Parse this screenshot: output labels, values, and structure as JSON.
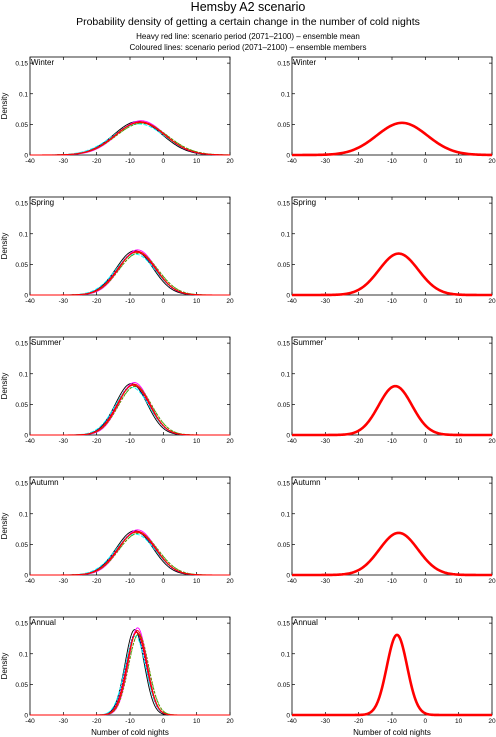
{
  "header": {
    "title": "Hemsby A2 scenario",
    "subtitle": "Probability density of getting a certain change in the number of cold nights",
    "note_mean": "Heavy red line: scenario period (2071–2100) – ensemble mean",
    "note_members": "Coloured lines: scenario period (2071–2100) – ensemble members"
  },
  "colors": {
    "ensemble_mean": "#ff0000",
    "ensemble_members": [
      "#000000",
      "#00c000",
      "#0000ff",
      "#ff00ff",
      "#00ffff",
      "#ff0000",
      "#808000"
    ]
  },
  "chart_data": [
    {
      "type": "line",
      "panel": "Winter",
      "column": "members",
      "season_label": "Winter",
      "ylabel": "Density",
      "xlabel": "",
      "xlim": [
        -40,
        20
      ],
      "ylim": [
        0,
        0.16
      ],
      "xticks": [
        -40,
        -30,
        -20,
        -10,
        0,
        10,
        20
      ],
      "yticks": [
        0,
        0.05,
        0.1,
        0.15
      ],
      "series": [
        {
          "distribution": "normal",
          "mean": -7,
          "sd": 7.5
        }
      ]
    },
    {
      "type": "line",
      "panel": "Winter",
      "column": "mean",
      "season_label": "Winter",
      "ylabel": "",
      "xlabel": "",
      "xlim": [
        -40,
        20
      ],
      "ylim": [
        0,
        0.16
      ],
      "xticks": [
        -40,
        -30,
        -20,
        -10,
        0,
        10,
        20
      ],
      "yticks": [
        0,
        0.05,
        0.1,
        0.15
      ],
      "series": [
        {
          "distribution": "normal",
          "mean": -7,
          "sd": 7.6
        }
      ]
    },
    {
      "type": "line",
      "panel": "Spring",
      "column": "members",
      "season_label": "Spring",
      "ylabel": "Density",
      "xlabel": "",
      "xlim": [
        -40,
        20
      ],
      "ylim": [
        0,
        0.16
      ],
      "xticks": [
        -40,
        -30,
        -20,
        -10,
        0,
        10,
        20
      ],
      "yticks": [
        0,
        0.05,
        0.1,
        0.15
      ],
      "series": [
        {
          "distribution": "normal",
          "mean": -8,
          "sd": 5.7
        }
      ]
    },
    {
      "type": "line",
      "panel": "Spring",
      "column": "mean",
      "season_label": "Spring",
      "ylabel": "",
      "xlabel": "",
      "xlim": [
        -40,
        20
      ],
      "ylim": [
        0,
        0.16
      ],
      "xticks": [
        -40,
        -30,
        -20,
        -10,
        0,
        10,
        20
      ],
      "yticks": [
        0,
        0.05,
        0.1,
        0.15
      ],
      "series": [
        {
          "distribution": "normal",
          "mean": -8,
          "sd": 5.9
        }
      ]
    },
    {
      "type": "line",
      "panel": "Summer",
      "column": "members",
      "season_label": "Summer",
      "ylabel": "Density",
      "xlabel": "",
      "xlim": [
        -40,
        20
      ],
      "ylim": [
        0,
        0.16
      ],
      "xticks": [
        -40,
        -30,
        -20,
        -10,
        0,
        10,
        20
      ],
      "yticks": [
        0,
        0.05,
        0.1,
        0.15
      ],
      "series": [
        {
          "distribution": "normal",
          "mean": -9,
          "sd": 4.9
        }
      ]
    },
    {
      "type": "line",
      "panel": "Summer",
      "column": "mean",
      "season_label": "Summer",
      "ylabel": "",
      "xlabel": "",
      "xlim": [
        -40,
        20
      ],
      "ylim": [
        0,
        0.16
      ],
      "xticks": [
        -40,
        -30,
        -20,
        -10,
        0,
        10,
        20
      ],
      "yticks": [
        0,
        0.05,
        0.1,
        0.15
      ],
      "series": [
        {
          "distribution": "normal",
          "mean": -9,
          "sd": 5.0
        }
      ]
    },
    {
      "type": "line",
      "panel": "Autumn",
      "column": "members",
      "season_label": "Autumn",
      "ylabel": "Density",
      "xlabel": "",
      "xlim": [
        -40,
        20
      ],
      "ylim": [
        0,
        0.16
      ],
      "xticks": [
        -40,
        -30,
        -20,
        -10,
        0,
        10,
        20
      ],
      "yticks": [
        0,
        0.05,
        0.1,
        0.15
      ],
      "series": [
        {
          "distribution": "normal",
          "mean": -8,
          "sd": 5.7
        }
      ]
    },
    {
      "type": "line",
      "panel": "Autumn",
      "column": "mean",
      "season_label": "Autumn",
      "ylabel": "",
      "xlabel": "",
      "xlim": [
        -40,
        20
      ],
      "ylim": [
        0,
        0.16
      ],
      "xticks": [
        -40,
        -30,
        -20,
        -10,
        0,
        10,
        20
      ],
      "yticks": [
        0,
        0.05,
        0.1,
        0.15
      ],
      "series": [
        {
          "distribution": "normal",
          "mean": -8,
          "sd": 5.8
        }
      ]
    },
    {
      "type": "line",
      "panel": "Annual",
      "column": "members",
      "season_label": "Annual",
      "ylabel": "Density",
      "xlabel": "Number of cold nights",
      "xlim": [
        -40,
        20
      ],
      "ylim": [
        0,
        0.16
      ],
      "xticks": [
        -40,
        -30,
        -20,
        -10,
        0,
        10,
        20
      ],
      "yticks": [
        0,
        0.05,
        0.1,
        0.15
      ],
      "series": [
        {
          "distribution": "normal",
          "mean": -8,
          "sd": 2.95
        }
      ]
    },
    {
      "type": "line",
      "panel": "Annual",
      "column": "mean",
      "season_label": "Annual",
      "ylabel": "",
      "xlabel": "Number of cold nights",
      "xlim": [
        -40,
        20
      ],
      "ylim": [
        0,
        0.16
      ],
      "xticks": [
        -40,
        -30,
        -20,
        -10,
        0,
        10,
        20
      ],
      "yticks": [
        0,
        0.05,
        0.1,
        0.15
      ],
      "series": [
        {
          "distribution": "normal",
          "mean": -8.5,
          "sd": 3.05
        }
      ]
    }
  ]
}
